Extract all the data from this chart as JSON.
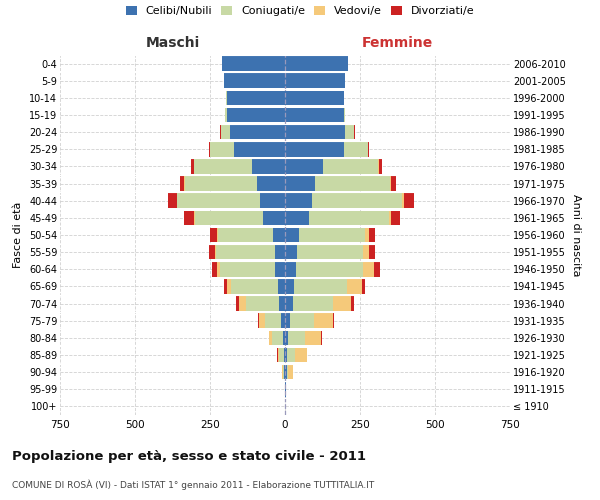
{
  "age_groups": [
    "100+",
    "95-99",
    "90-94",
    "85-89",
    "80-84",
    "75-79",
    "70-74",
    "65-69",
    "60-64",
    "55-59",
    "50-54",
    "45-49",
    "40-44",
    "35-39",
    "30-34",
    "25-29",
    "20-24",
    "15-19",
    "10-14",
    "5-9",
    "0-4"
  ],
  "birth_years": [
    "≤ 1910",
    "1911-1915",
    "1916-1920",
    "1921-1925",
    "1926-1930",
    "1931-1935",
    "1936-1940",
    "1941-1945",
    "1946-1950",
    "1951-1955",
    "1956-1960",
    "1961-1965",
    "1966-1970",
    "1971-1975",
    "1976-1980",
    "1981-1985",
    "1986-1990",
    "1991-1995",
    "1996-2000",
    "2001-2005",
    "2006-2010"
  ],
  "male": {
    "celibe": [
      1,
      1,
      3,
      5,
      8,
      12,
      20,
      25,
      32,
      35,
      40,
      75,
      85,
      95,
      110,
      170,
      185,
      195,
      195,
      205,
      210
    ],
    "coniugato": [
      0,
      0,
      5,
      15,
      35,
      55,
      110,
      155,
      185,
      195,
      185,
      225,
      275,
      240,
      195,
      80,
      30,
      5,
      2,
      0,
      0
    ],
    "vedovo": [
      0,
      0,
      1,
      5,
      10,
      20,
      25,
      15,
      10,
      5,
      3,
      2,
      1,
      1,
      0,
      0,
      0,
      0,
      0,
      0,
      0
    ],
    "divorziato": [
      0,
      0,
      0,
      1,
      2,
      3,
      8,
      10,
      15,
      18,
      22,
      35,
      30,
      15,
      10,
      3,
      1,
      0,
      0,
      0,
      0
    ]
  },
  "female": {
    "nubile": [
      1,
      2,
      5,
      8,
      10,
      15,
      25,
      30,
      35,
      40,
      45,
      80,
      90,
      100,
      125,
      195,
      200,
      195,
      195,
      200,
      210
    ],
    "coniugata": [
      0,
      0,
      5,
      25,
      55,
      80,
      135,
      175,
      225,
      220,
      220,
      265,
      300,
      250,
      185,
      80,
      30,
      5,
      2,
      0,
      0
    ],
    "vedova": [
      0,
      1,
      15,
      40,
      55,
      65,
      60,
      50,
      35,
      20,
      15,
      8,
      5,
      3,
      2,
      1,
      0,
      0,
      0,
      0,
      0
    ],
    "divorziata": [
      0,
      0,
      0,
      1,
      3,
      4,
      10,
      12,
      20,
      20,
      20,
      30,
      35,
      18,
      12,
      4,
      2,
      0,
      0,
      0,
      0
    ]
  },
  "colors": {
    "celibe": "#3d72b0",
    "coniugato": "#c8d9a5",
    "vedovo": "#f5c97a",
    "divorziato": "#cc2222"
  },
  "xlim": 750,
  "title": "Popolazione per età, sesso e stato civile - 2011",
  "subtitle": "COMUNE DI ROSÀ (VI) - Dati ISTAT 1° gennaio 2011 - Elaborazione TUTTITALIA.IT",
  "ylabel_left": "Fasce di età",
  "ylabel_right": "Anni di nascita",
  "xlabel_maschi": "Maschi",
  "xlabel_femmine": "Femmine",
  "legend_labels": [
    "Celibi/Nubili",
    "Coniugati/e",
    "Vedovi/e",
    "Divorziati/e"
  ],
  "background_color": "#ffffff",
  "grid_color": "#cccccc"
}
